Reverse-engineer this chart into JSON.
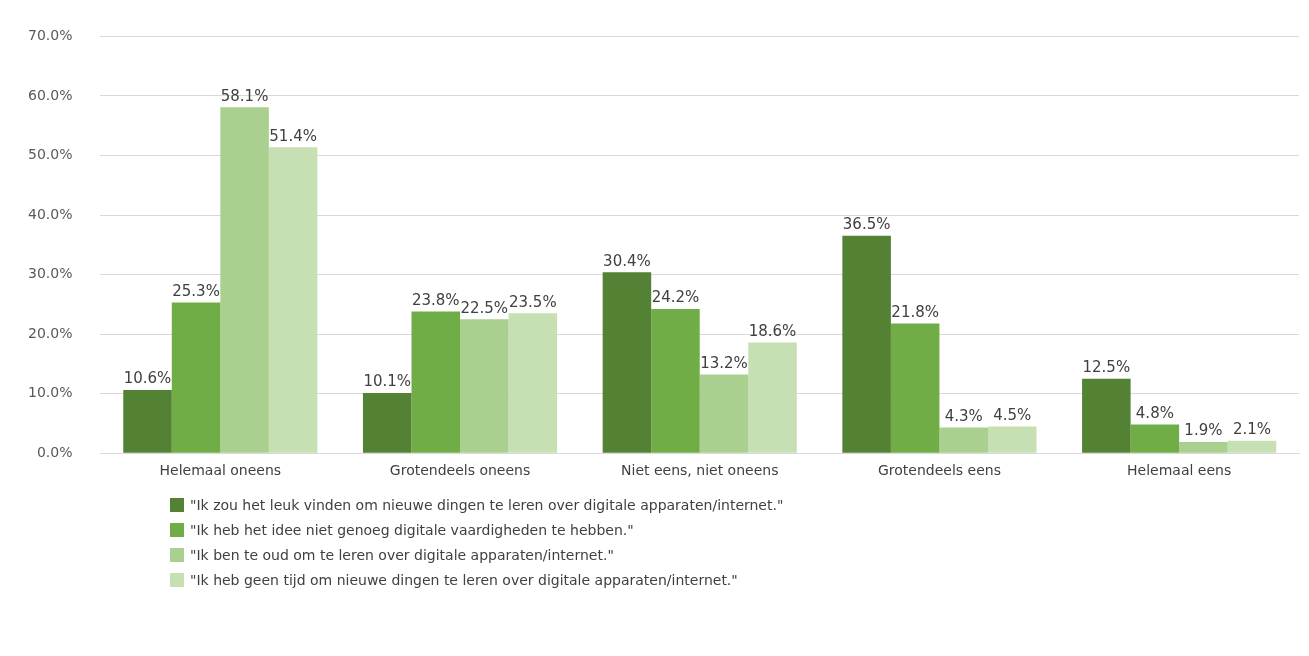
{
  "chart_data": {
    "type": "bar",
    "categories": [
      "Helemaal oneens",
      "Grotendeels oneens",
      "Niet eens, niet oneens",
      "Grotendeels eens",
      "Helemaal eens"
    ],
    "series": [
      {
        "name": "\"Ik zou het leuk vinden om nieuwe dingen te leren over digitale apparaten/internet.\"",
        "color": "#548235",
        "values": [
          10.6,
          10.1,
          30.4,
          36.5,
          12.5
        ],
        "value_labels": [
          "10.6%",
          "10.1%",
          "30.4%",
          "36.5%",
          "12.5%"
        ]
      },
      {
        "name": "\"Ik heb het idee niet genoeg digitale vaardigheden te hebben.\"",
        "color": "#70ad47",
        "values": [
          25.3,
          23.8,
          24.2,
          21.8,
          4.8
        ],
        "value_labels": [
          "25.3%",
          "23.8%",
          "24.2%",
          "21.8%",
          "4.8%"
        ]
      },
      {
        "name": "\"Ik ben te oud om te leren over digitale apparaten/internet.\"",
        "color": "#a9d08e",
        "values": [
          58.1,
          22.5,
          13.2,
          4.3,
          1.9
        ],
        "value_labels": [
          "58.1%",
          "22.5%",
          "13.2%",
          "4.3%",
          "1.9%"
        ]
      },
      {
        "name": "\"Ik heb geen tijd om nieuwe dingen te leren over digitale apparaten/internet.\"",
        "color": "#c6e0b4",
        "values": [
          51.4,
          23.5,
          18.6,
          4.5,
          2.1
        ],
        "value_labels": [
          "51.4%",
          "23.5%",
          "18.6%",
          "4.5%",
          "2.1%"
        ]
      }
    ],
    "ylim": [
      0,
      70
    ],
    "yticks": [
      {
        "value": 0,
        "label": "0.0%"
      },
      {
        "value": 10,
        "label": "10.0%"
      },
      {
        "value": 20,
        "label": "20.0%"
      },
      {
        "value": 30,
        "label": "30.0%"
      },
      {
        "value": 40,
        "label": "40.0%"
      },
      {
        "value": 50,
        "label": "50.0%"
      },
      {
        "value": 60,
        "label": "60.0%"
      },
      {
        "value": 70,
        "label": "70.0%"
      }
    ],
    "grid": "y",
    "legend": "bottom"
  }
}
